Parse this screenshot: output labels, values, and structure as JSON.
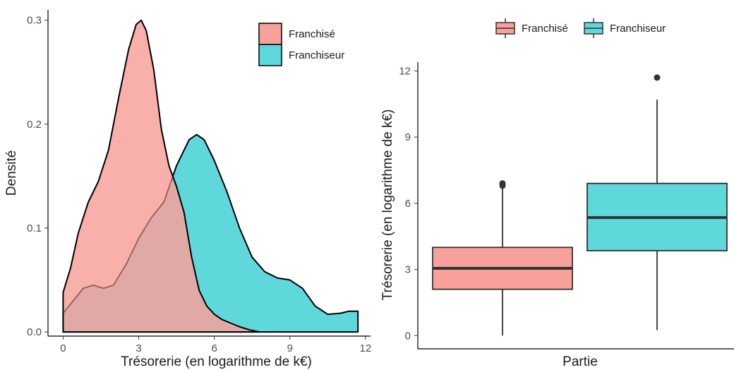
{
  "colors": {
    "franchise": "#F8A19B",
    "franchiseur": "#5FD8DC",
    "overlap": "#66AEAE",
    "outline": "#000000"
  },
  "chart_data": [
    {
      "type": "area",
      "subtype": "density",
      "xlabel": "Trésorerie (en logarithme de k€)",
      "ylabel": "Densité",
      "xlim": [
        -0.6,
        12.2
      ],
      "ylim": [
        -0.004,
        0.31
      ],
      "x_ticks": [
        "0",
        "3",
        "6",
        "9",
        "12"
      ],
      "x_tick_values": [
        0,
        3,
        6,
        9,
        12
      ],
      "y_ticks": [
        "0.0",
        "0.1",
        "0.2",
        "0.3"
      ],
      "y_tick_values": [
        0,
        0.1,
        0.2,
        0.3
      ],
      "legend_position": "top-right",
      "series": [
        {
          "name": "Franchisé",
          "color": "#F8A19B",
          "x": [
            0,
            0.3,
            0.6,
            1.0,
            1.4,
            1.8,
            2.2,
            2.6,
            2.9,
            3.1,
            3.3,
            3.6,
            3.9,
            4.2,
            4.5,
            4.8,
            5.1,
            5.4,
            5.7,
            6.0,
            6.3,
            6.6,
            7.0,
            7.4,
            7.8
          ],
          "y": [
            0.038,
            0.062,
            0.095,
            0.125,
            0.145,
            0.175,
            0.225,
            0.272,
            0.296,
            0.3,
            0.29,
            0.252,
            0.195,
            0.16,
            0.14,
            0.115,
            0.072,
            0.04,
            0.025,
            0.017,
            0.012,
            0.009,
            0.005,
            0.002,
            0.0
          ]
        },
        {
          "name": "Franchiseur",
          "color": "#5FD8DC",
          "x": [
            0,
            0.4,
            0.8,
            1.2,
            1.6,
            2.0,
            2.5,
            3.0,
            3.5,
            4.0,
            4.5,
            5.0,
            5.3,
            5.6,
            6.0,
            6.5,
            7.0,
            7.5,
            8.0,
            8.5,
            9.0,
            9.5,
            10.0,
            10.5,
            11.0,
            11.35,
            11.7
          ],
          "y": [
            0.018,
            0.03,
            0.042,
            0.045,
            0.042,
            0.045,
            0.065,
            0.09,
            0.11,
            0.125,
            0.16,
            0.185,
            0.19,
            0.185,
            0.165,
            0.135,
            0.1,
            0.072,
            0.058,
            0.052,
            0.05,
            0.042,
            0.025,
            0.017,
            0.018,
            0.02,
            0.02
          ]
        }
      ]
    },
    {
      "type": "box",
      "xlabel": "Partie",
      "ylabel": "Trésorerie (en logarithme de k€)",
      "ylim": [
        -0.6,
        12.4
      ],
      "y_ticks": [
        "0",
        "3",
        "6",
        "9",
        "12"
      ],
      "y_tick_values": [
        0,
        3,
        6,
        9,
        12
      ],
      "legend_position": "top",
      "series": [
        {
          "name": "Franchisé",
          "color": "#F8A19B",
          "min": 0.0,
          "q1": 2.1,
          "median": 3.05,
          "q3": 4.0,
          "max": 6.8,
          "outliers": [
            6.8,
            6.9
          ]
        },
        {
          "name": "Franchiseur",
          "color": "#5FD8DC",
          "min": 0.25,
          "q1": 3.85,
          "median": 5.35,
          "q3": 6.9,
          "max": 10.7,
          "outliers": [
            11.7
          ]
        }
      ]
    }
  ]
}
